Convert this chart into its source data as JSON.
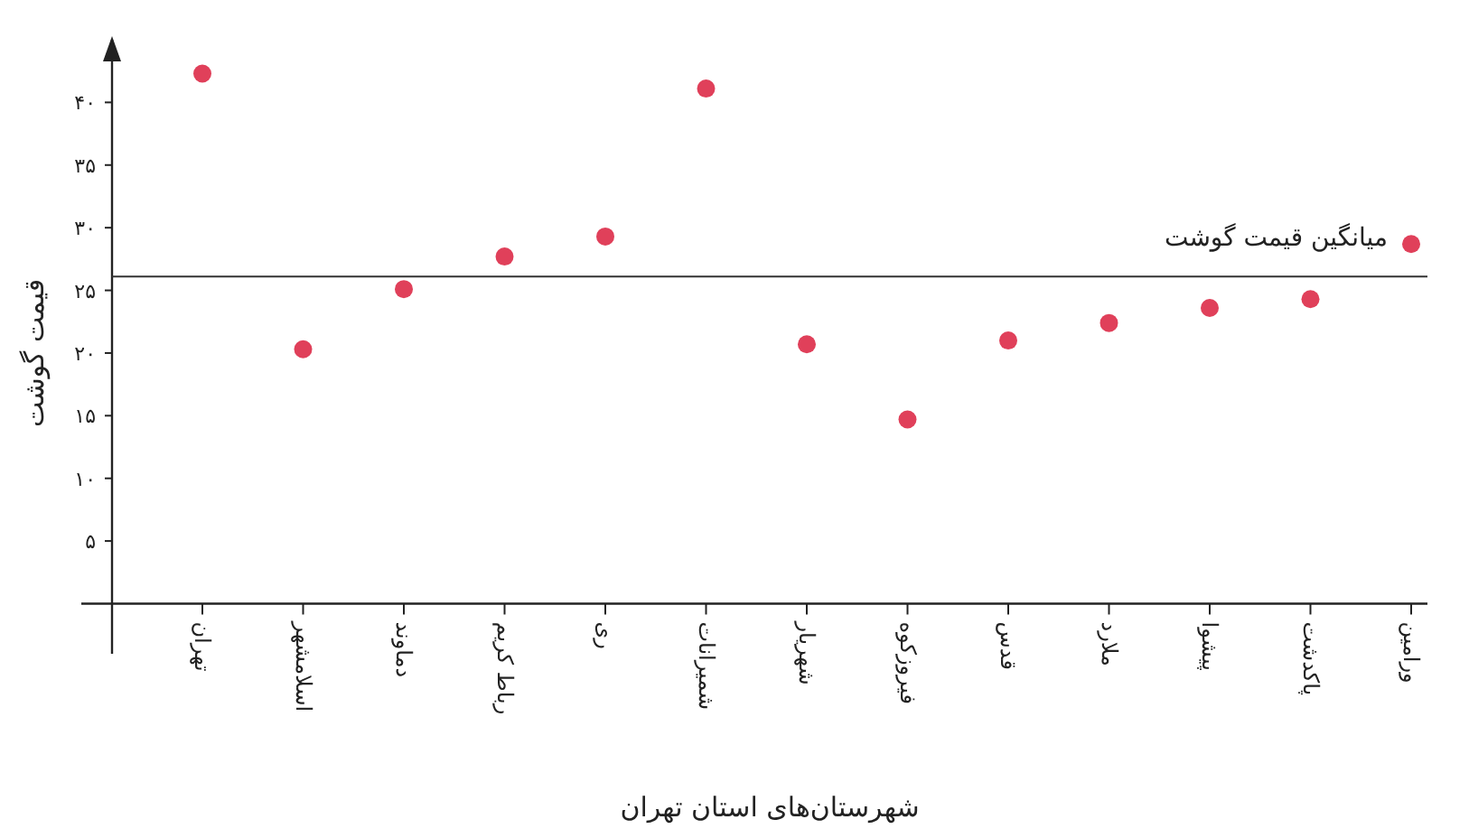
{
  "chart_data": {
    "type": "scatter",
    "xlabel": "شهرستان‌های استان تهران",
    "ylabel": "قیمت گوشت",
    "categories": [
      "تهران",
      "اسلامشهر",
      "دماوند",
      "رباط کریم",
      "ری",
      "شمیرانات",
      "شهریار",
      "فیروزکوه",
      "قدس",
      "ملارد",
      "پیشوا",
      "پاکدشت",
      "ورامین"
    ],
    "values": [
      42.3,
      20.3,
      25.1,
      27.7,
      29.3,
      41.1,
      20.7,
      14.7,
      21,
      22.4,
      23.6,
      24.3,
      28.7
    ],
    "color": "#e0405a",
    "marker": "circle",
    "ylim": [
      -4,
      45
    ],
    "yticks": [
      {
        "value": 5,
        "label": "۵"
      },
      {
        "value": 10,
        "label": "۱۰"
      },
      {
        "value": 15,
        "label": "۱۵"
      },
      {
        "value": 20,
        "label": "۲۰"
      },
      {
        "value": 25,
        "label": "۲۵"
      },
      {
        "value": 30,
        "label": "۳۰"
      },
      {
        "value": 35,
        "label": "۳۵"
      },
      {
        "value": 40,
        "label": "۴۰"
      }
    ],
    "ref_lines": [
      {
        "axis": "y",
        "value": 26.1,
        "label": "میانگین قیمت گوشت",
        "color": "#333333"
      }
    ]
  }
}
